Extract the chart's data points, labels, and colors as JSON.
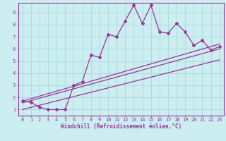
{
  "title": "",
  "xlabel": "Windchill (Refroidissement éolien,°C)",
  "ylabel": "",
  "background_color": "#cceef0",
  "grid_color": "#aadddd",
  "line_color": "#993399",
  "xlim": [
    -0.5,
    23.5
  ],
  "ylim": [
    0.5,
    9.8
  ],
  "xticks": [
    0,
    1,
    2,
    3,
    4,
    5,
    6,
    7,
    8,
    9,
    10,
    11,
    12,
    13,
    14,
    15,
    16,
    17,
    18,
    19,
    20,
    21,
    22,
    23
  ],
  "yticks": [
    1,
    2,
    3,
    4,
    5,
    6,
    7,
    8,
    9
  ],
  "main_series_x": [
    0,
    1,
    2,
    3,
    4,
    5,
    6,
    7,
    8,
    9,
    10,
    11,
    12,
    13,
    14,
    15,
    16,
    17,
    18,
    19,
    20,
    21,
    22,
    23
  ],
  "main_series_y": [
    1.7,
    1.6,
    1.2,
    1.0,
    1.0,
    1.0,
    3.0,
    3.3,
    5.5,
    5.3,
    7.2,
    7.0,
    8.3,
    9.6,
    8.1,
    9.6,
    7.4,
    7.3,
    8.1,
    7.4,
    6.3,
    6.7,
    5.9,
    6.2
  ],
  "line1_x": [
    0,
    23
  ],
  "line1_y": [
    1.7,
    6.4
  ],
  "line2_x": [
    0,
    23
  ],
  "line2_y": [
    1.55,
    6.0
  ],
  "line3_x": [
    0,
    23
  ],
  "line3_y": [
    1.0,
    5.1
  ]
}
